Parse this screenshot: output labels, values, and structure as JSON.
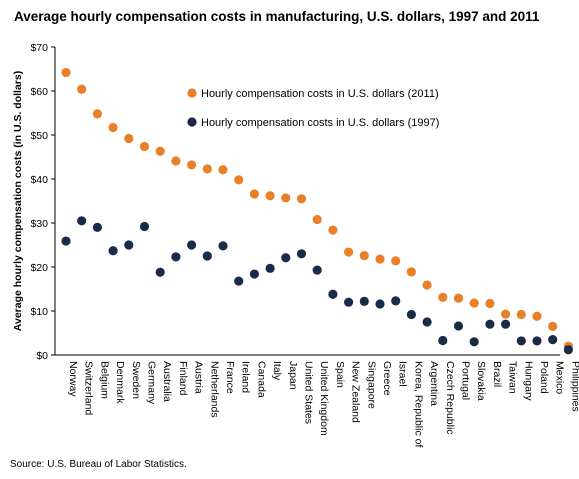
{
  "colors": {
    "series_2011": "#E8802A",
    "series_1997": "#1A2B4A"
  },
  "chart_data": {
    "type": "scatter",
    "title": "Average hourly compensation costs in manufacturing, U.S. dollars, 1997 and 2011",
    "xlabel": "",
    "ylabel": "Average hourly compensation costs (in U.S. dollars)",
    "ylim": [
      0,
      70
    ],
    "yticks": [
      0,
      10,
      20,
      30,
      40,
      50,
      60,
      70
    ],
    "ytick_labels": [
      "$0",
      "$10",
      "$20",
      "$30",
      "$40",
      "$50",
      "$60",
      "$70"
    ],
    "grid": false,
    "legend_position": "top-center",
    "categories": [
      "Norway",
      "Switzerland",
      "Belgium",
      "Denmark",
      "Sweden",
      "Germany",
      "Australia",
      "Finland",
      "Austria",
      "Netherlands",
      "France",
      "Ireland",
      "Canada",
      "Italy",
      "Japan",
      "United States",
      "United Kingdom",
      "Spain",
      "New Zealand",
      "Singapore",
      "Greece",
      "Israel",
      "Korea, Republic of",
      "Argentina",
      "Czech Republic",
      "Portugal",
      "Slovakia",
      "Brazil",
      "Taiwan",
      "Hungary",
      "Poland",
      "Mexico",
      "Philippines"
    ],
    "series": [
      {
        "name": "Hourly compensation costs in U.S. dollars (2011)",
        "values": [
          64.2,
          60.4,
          54.8,
          51.7,
          49.2,
          47.4,
          46.3,
          44.1,
          43.2,
          42.3,
          42.1,
          39.8,
          36.6,
          36.2,
          35.7,
          35.5,
          30.8,
          28.4,
          23.4,
          22.6,
          21.8,
          21.4,
          18.9,
          15.9,
          13.1,
          12.9,
          11.8,
          11.7,
          9.3,
          9.2,
          8.8,
          6.5,
          2.0
        ]
      },
      {
        "name": "Hourly compensation costs in U.S. dollars (1997)",
        "values": [
          25.9,
          30.5,
          29.0,
          23.7,
          25.0,
          29.2,
          18.8,
          22.3,
          25.0,
          22.5,
          24.8,
          16.8,
          18.4,
          19.7,
          22.1,
          23.0,
          19.3,
          13.8,
          12.0,
          12.2,
          11.6,
          12.3,
          9.2,
          7.5,
          3.3,
          6.6,
          3.0,
          7.0,
          7.0,
          3.2,
          3.2,
          3.5,
          1.2
        ]
      }
    ]
  },
  "source": "Source: U.S. Bureau of Labor Statistics."
}
